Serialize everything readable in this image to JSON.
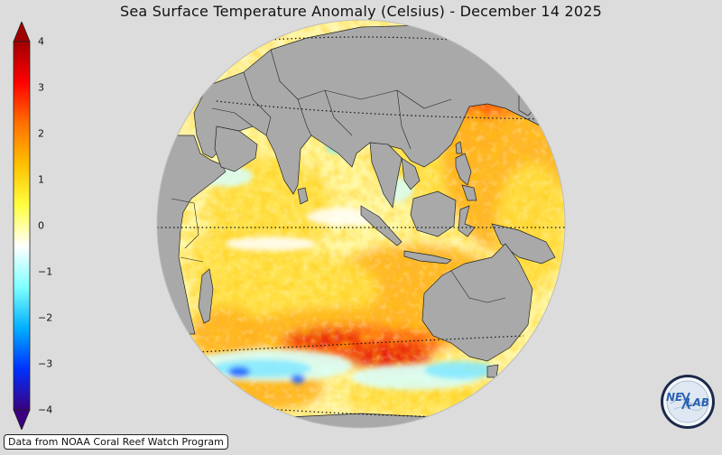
{
  "title": "Sea Surface Temperature Anomaly (Celsius) - December 14 2025",
  "colorbar": {
    "ticks": [
      "4",
      "3",
      "2",
      "1",
      "0",
      "−1",
      "−2",
      "−3",
      "−4"
    ],
    "min": -4,
    "max": 4,
    "colors": [
      "#3b0080",
      "#0030ff",
      "#00b0ff",
      "#80ffff",
      "#ffffff",
      "#ffff40",
      "#ffc000",
      "#ff7000",
      "#ff0000",
      "#a00000"
    ]
  },
  "map": {
    "land_color": "#a9a9a9",
    "ocean_color": "#ffffff",
    "anomaly_colors": {
      "warm_light": "#fff8a0",
      "warm": "#ffe24a",
      "warmer": "#ffb020",
      "hot": "#ff6010",
      "very_hot": "#e81a0a",
      "cool_light": "#d8ffff",
      "cool": "#80e8ff",
      "cold": "#1a60ff"
    }
  },
  "attribution": "Data from NOAA Coral Reef Watch Program",
  "logo": {
    "text_left": "NE",
    "text_right": "LAB",
    "icon": "nexlab-logo-icon"
  }
}
